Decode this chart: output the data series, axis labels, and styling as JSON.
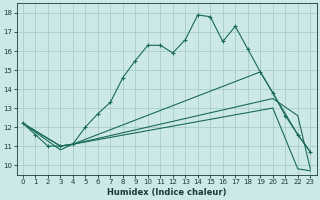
{
  "xlabel": "Humidex (Indice chaleur)",
  "bg_color": "#cce8e8",
  "grid_color": "#aacccc",
  "line_color": "#1a6a5a",
  "xlim": [
    -0.5,
    23.5
  ],
  "ylim": [
    9.5,
    18.5
  ],
  "xticks": [
    0,
    1,
    2,
    3,
    4,
    5,
    6,
    7,
    8,
    9,
    10,
    11,
    12,
    13,
    14,
    15,
    16,
    17,
    18,
    19,
    20,
    21,
    22,
    23
  ],
  "yticks": [
    10,
    11,
    12,
    13,
    14,
    15,
    16,
    17,
    18
  ],
  "line1_x": [
    0,
    1,
    2,
    3,
    4,
    5,
    6,
    7,
    8,
    9,
    10,
    11,
    12,
    13,
    14,
    15,
    16,
    17,
    18,
    19,
    20,
    21,
    22,
    23
  ],
  "line1_y": [
    12.2,
    11.6,
    11.0,
    11.0,
    11.1,
    12.0,
    12.7,
    13.3,
    14.6,
    15.5,
    16.3,
    16.3,
    15.9,
    16.6,
    17.9,
    17.8,
    16.5,
    17.3,
    16.1,
    14.9,
    13.8,
    12.6,
    11.6,
    10.7
  ],
  "line2_x": [
    0,
    3,
    4,
    19,
    20,
    22,
    23
  ],
  "line2_y": [
    12.2,
    11.0,
    11.1,
    14.9,
    13.8,
    11.6,
    10.7
  ],
  "line3_x": [
    0,
    3,
    4,
    20,
    22,
    23
  ],
  "line3_y": [
    12.2,
    11.0,
    11.1,
    13.5,
    12.6,
    9.8
  ],
  "line4_x": [
    0,
    3,
    4,
    20,
    22,
    23
  ],
  "line4_y": [
    12.2,
    10.8,
    11.1,
    13.0,
    9.8,
    9.7
  ],
  "xlabel_fontsize": 6,
  "tick_fontsize": 5
}
